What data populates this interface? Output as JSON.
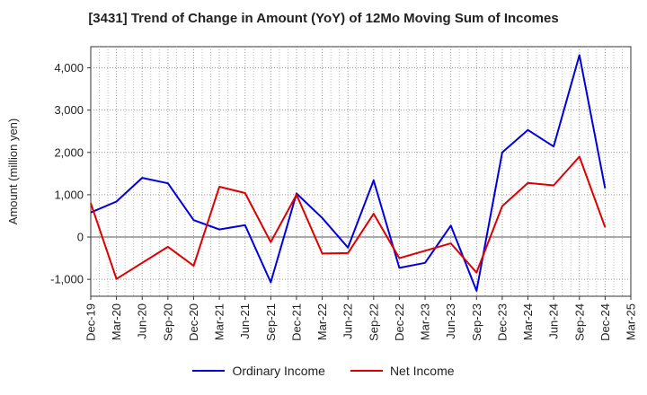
{
  "chart_data": {
    "type": "line",
    "title": "[3431]  Trend of Change in Amount (YoY) of 12Mo Moving Sum of Incomes",
    "ylabel": "Amount (million yen)",
    "xlabel": "",
    "ylim": [
      -1400,
      4500
    ],
    "yticks": [
      -1000,
      0,
      1000,
      2000,
      3000,
      4000
    ],
    "ytick_labels": [
      "-1,000",
      "0",
      "1,000",
      "2,000",
      "3,000",
      "4,000"
    ],
    "x": [
      "Dec-19",
      "Mar-20",
      "Jun-20",
      "Sep-20",
      "Dec-20",
      "Mar-21",
      "Jun-21",
      "Sep-21",
      "Dec-21",
      "Mar-22",
      "Jun-22",
      "Sep-22",
      "Dec-22",
      "Mar-23",
      "Jun-23",
      "Sep-23",
      "Dec-23",
      "Mar-24",
      "Jun-24",
      "Sep-24",
      "Dec-24",
      "Mar-25"
    ],
    "grid": true,
    "legend_position": "bottom",
    "series": [
      {
        "name": "Ordinary Income",
        "color": "#0000dd",
        "values": [
          580,
          840,
          1400,
          1270,
          400,
          180,
          280,
          -1070,
          1030,
          450,
          -250,
          1340,
          -730,
          -610,
          270,
          -1270,
          2000,
          2530,
          2140,
          4300,
          1150,
          null
        ]
      },
      {
        "name": "Net Income",
        "color": "#dd0000",
        "values": [
          800,
          -990,
          null,
          -230,
          -680,
          1190,
          1040,
          -120,
          1000,
          -390,
          -380,
          550,
          -500,
          null,
          -150,
          -840,
          730,
          1280,
          1220,
          1900,
          230,
          null
        ]
      }
    ]
  }
}
